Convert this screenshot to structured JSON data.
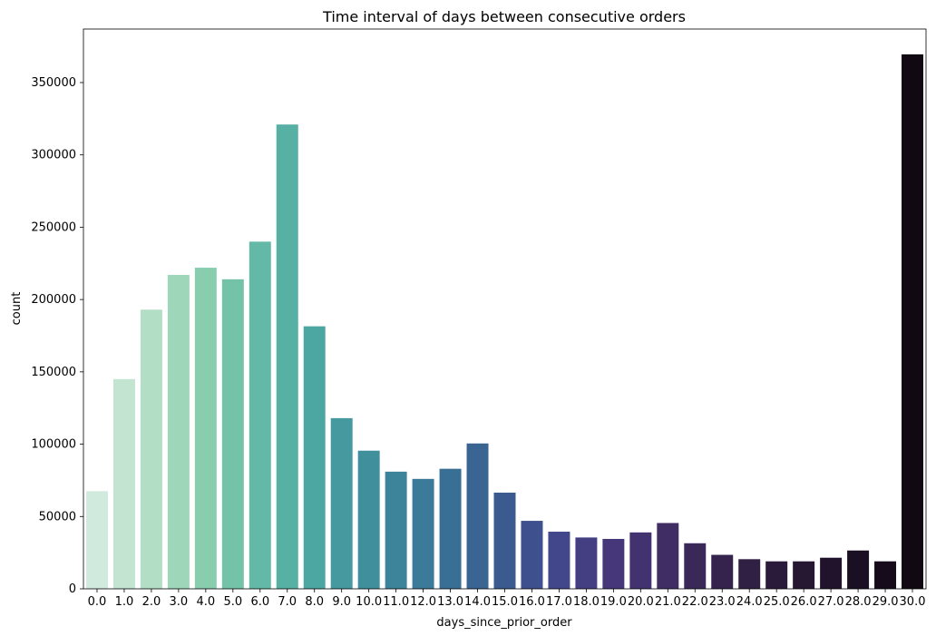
{
  "chart_data": {
    "type": "bar",
    "title": "Time interval of days between consecutive orders",
    "xlabel": "days_since_prior_order",
    "ylabel": "count",
    "ylim": [
      0,
      387000
    ],
    "yticks": [
      0,
      50000,
      100000,
      150000,
      200000,
      250000,
      300000,
      350000
    ],
    "grid": false,
    "categories": [
      "0.0",
      "1.0",
      "2.0",
      "3.0",
      "4.0",
      "5.0",
      "6.0",
      "7.0",
      "8.0",
      "9.0",
      "10.0",
      "11.0",
      "12.0",
      "13.0",
      "14.0",
      "15.0",
      "16.0",
      "17.0",
      "18.0",
      "19.0",
      "20.0",
      "21.0",
      "22.0",
      "23.0",
      "24.0",
      "25.0",
      "26.0",
      "27.0",
      "28.0",
      "29.0",
      "30.0"
    ],
    "values": [
      67500,
      145000,
      193000,
      217000,
      222000,
      214000,
      240000,
      321000,
      181500,
      118000,
      95500,
      81000,
      76000,
      83000,
      100500,
      66500,
      47000,
      39500,
      35500,
      34500,
      39000,
      45500,
      31500,
      23500,
      20500,
      19000,
      19000,
      21500,
      26500,
      19000,
      369500
    ],
    "colors": [
      "#d0eadd",
      "#c2e4d1",
      "#b1dec4",
      "#9dd6b8",
      "#89cdaf",
      "#74c3a8",
      "#63b9a5",
      "#56b0a3",
      "#4ca6a2",
      "#45999f",
      "#408f9d",
      "#3d849b",
      "#3b7a98",
      "#3a6f95",
      "#3a6592",
      "#3b5a90",
      "#3e508d",
      "#41478a",
      "#443e83",
      "#45377a",
      "#433270",
      "#3f2d63",
      "#3a2858",
      "#35234d",
      "#302043",
      "#2b1b3a",
      "#261733",
      "#20132b",
      "#1b0f23",
      "#150b1b",
      "#100912"
    ]
  }
}
